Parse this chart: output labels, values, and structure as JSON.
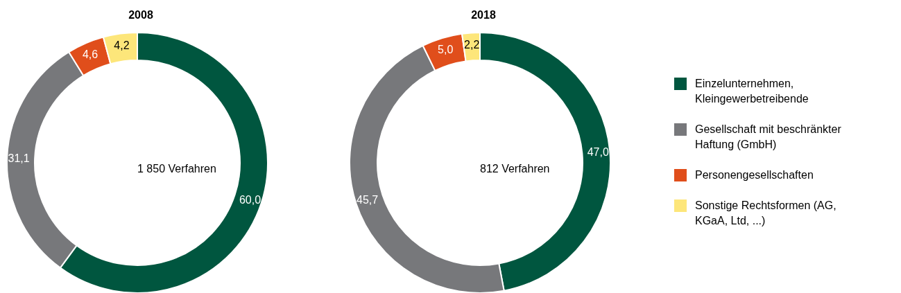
{
  "chart_data": {
    "type": "donut",
    "categories": [
      "Einzelunternehmen, Kleingewerbetreibende",
      "Gesellschaft mit beschränkter Haftung (GmbH)",
      "Personengesellschaften",
      "Sonstige Rechtsformen (AG, KGaA, Ltd, ...)"
    ],
    "colors": [
      "#00563f",
      "#77787b",
      "#e04e1b",
      "#fde67a"
    ],
    "series": [
      {
        "name": "2008",
        "values": [
          60.0,
          31.1,
          4.6,
          4.2
        ],
        "value_labels": [
          "60,0",
          "31,1",
          "4,6",
          "4,2"
        ]
      },
      {
        "name": "2018",
        "values": [
          47.0,
          45.7,
          5.0,
          2.2
        ],
        "value_labels": [
          "47,0",
          "45,7",
          "5,0",
          "2,2"
        ]
      }
    ],
    "annotations": [
      "1 850 Verfahren",
      "812 Verfahren"
    ],
    "legend": "right"
  }
}
